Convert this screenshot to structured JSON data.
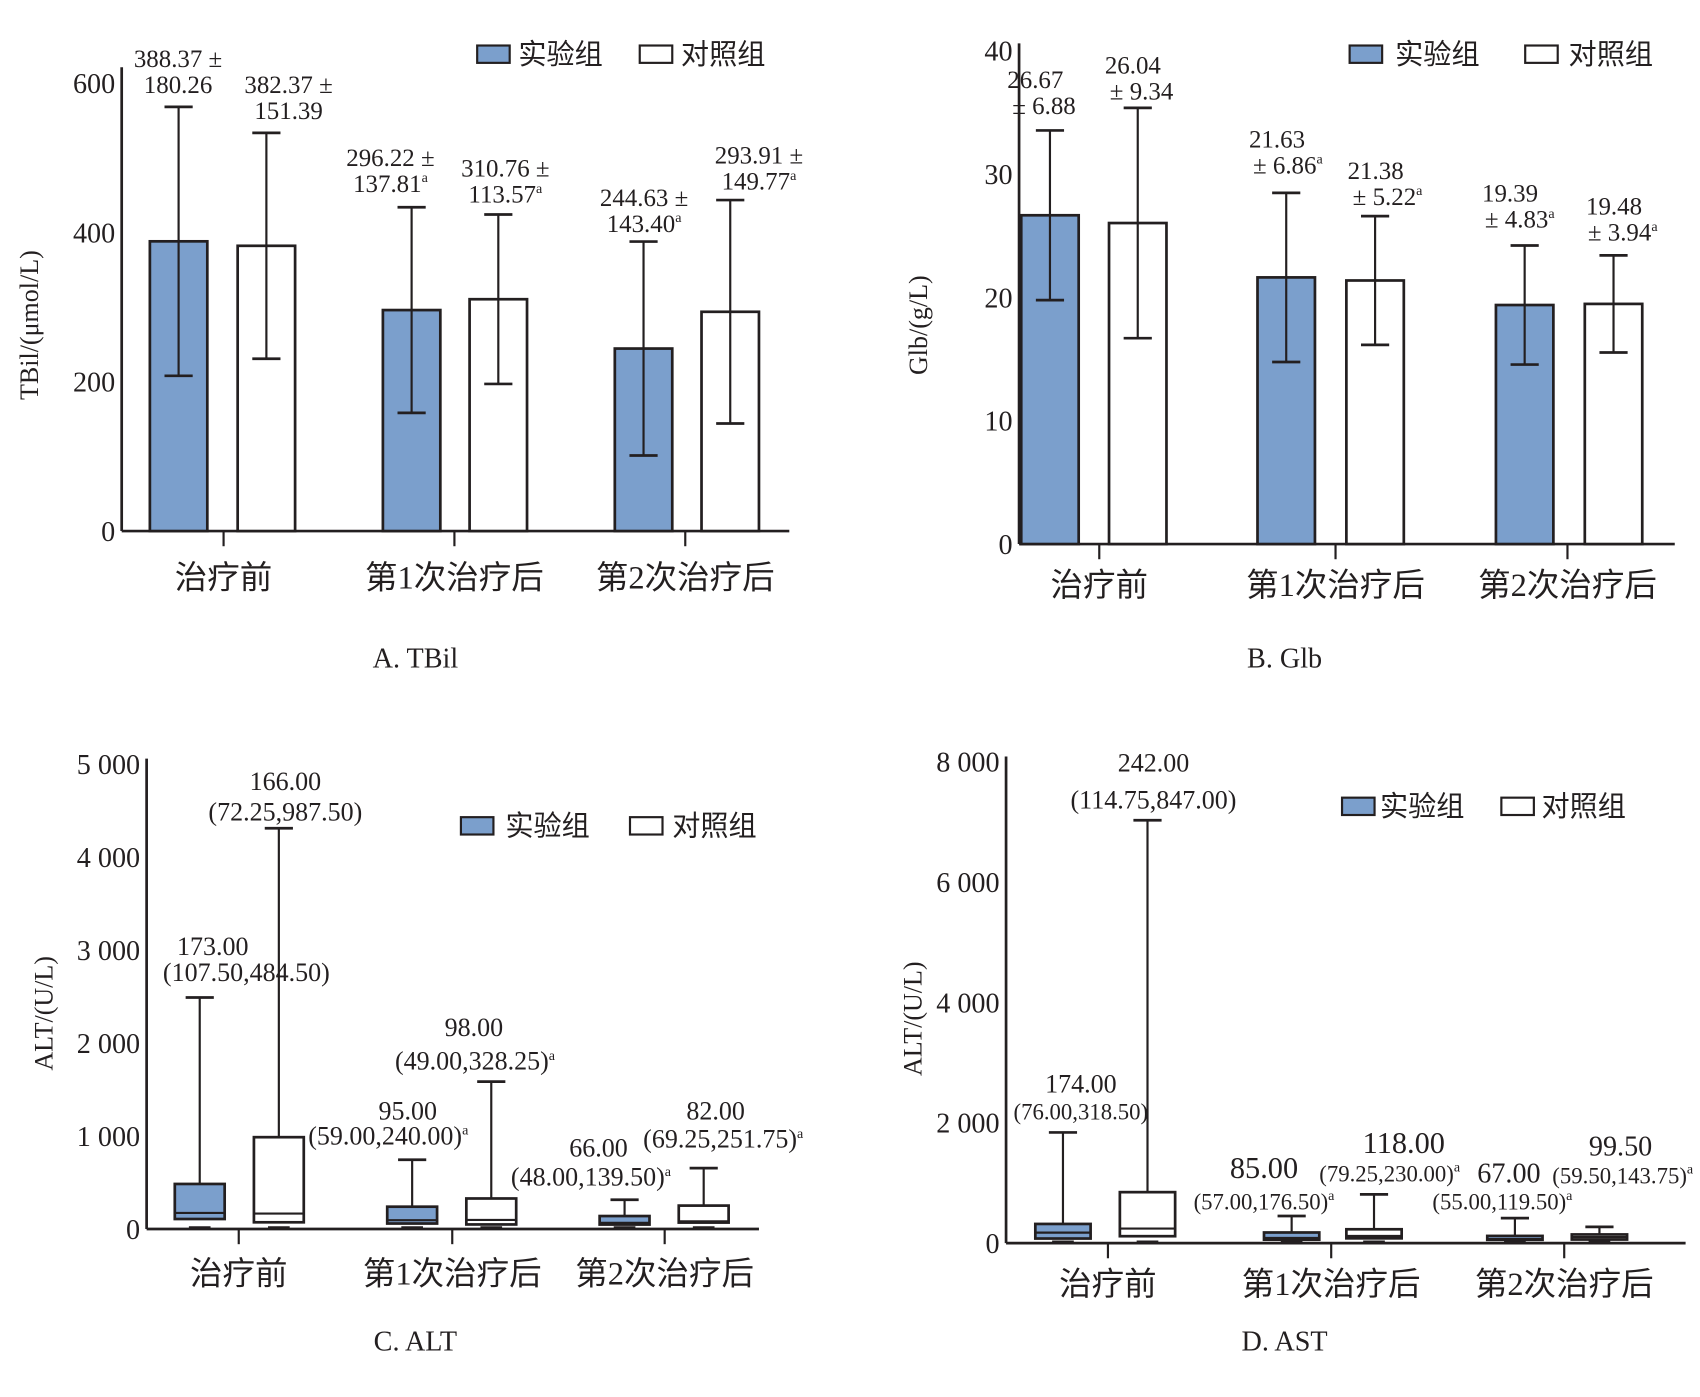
{
  "legend": {
    "experimental": "实验组",
    "control": "对照组",
    "experimental_color": "#7b9fcc",
    "control_color": "#ffffff"
  },
  "chart_data": [
    {
      "type": "bar",
      "title": "A. TBil",
      "ylabel": "TBil/(μmol/L)",
      "ylim": [
        0,
        600
      ],
      "yticks": [
        "0",
        "200",
        "400",
        "600"
      ],
      "ytick_values": [
        0,
        200,
        400,
        600
      ],
      "categories": [
        "治疗前",
        "第1次治疗后",
        "第2次治疗后"
      ],
      "series": [
        {
          "name": "实验组",
          "values": [
            388.37,
            296.22,
            244.63
          ],
          "sd": [
            180.26,
            137.81,
            143.4
          ]
        },
        {
          "name": "对照组",
          "values": [
            382.37,
            310.76,
            293.91
          ],
          "sd": [
            151.39,
            113.57,
            149.77
          ]
        }
      ],
      "labels": [
        [
          [
            "388.37 ±",
            "180.26",
            ""
          ],
          [
            "296.22 ±",
            "137.81",
            "a"
          ],
          [
            "244.63 ±",
            "143.40",
            "a"
          ]
        ],
        [
          [
            "382.37 ±",
            "151.39",
            ""
          ],
          [
            "310.76 ±",
            "113.57",
            "a"
          ],
          [
            "293.91 ±",
            "149.77",
            "a"
          ]
        ]
      ],
      "legend_position": "top-right"
    },
    {
      "type": "bar",
      "title": "B. Glb",
      "ylabel": "Glb/(g/L)",
      "ylim": [
        0,
        40
      ],
      "yticks": [
        "0",
        "10",
        "20",
        "30",
        "40"
      ],
      "ytick_values": [
        0,
        10,
        20,
        30,
        40
      ],
      "categories": [
        "治疗前",
        "第1次治疗后",
        "第2次治疗后"
      ],
      "series": [
        {
          "name": "实验组",
          "values": [
            26.67,
            21.63,
            19.39
          ],
          "sd": [
            6.88,
            6.86,
            4.83
          ]
        },
        {
          "name": "对照组",
          "values": [
            26.04,
            21.38,
            19.48
          ],
          "sd": [
            9.34,
            5.22,
            3.94
          ]
        }
      ],
      "labels": [
        [
          [
            "26.67",
            "± 6.88",
            ""
          ],
          [
            "21.63",
            "± 6.86",
            "a"
          ],
          [
            "19.39",
            "± 4.83",
            "a"
          ]
        ],
        [
          [
            "26.04",
            "± 9.34",
            ""
          ],
          [
            "21.38",
            "± 5.22",
            "a"
          ],
          [
            "19.48",
            "± 3.94",
            "a"
          ]
        ]
      ],
      "legend_position": "top-right"
    },
    {
      "type": "box",
      "title": "C. ALT",
      "ylabel": "ALT/(U/L)",
      "ylim": [
        0,
        5000
      ],
      "yticks": [
        "0",
        "1 000",
        "2 000",
        "3 000",
        "4 000",
        "5 000"
      ],
      "ytick_values": [
        0,
        1000,
        2000,
        3000,
        4000,
        5000
      ],
      "categories": [
        "治疗前",
        "第1次治疗后",
        "第2次治疗后"
      ],
      "series": [
        {
          "name": "实验组",
          "median": [
            173.0,
            95.0,
            66.0
          ],
          "q1": [
            107.5,
            59.0,
            48.0
          ],
          "q3": [
            484.5,
            240.0,
            139.5
          ],
          "whisker_high": [
            2490,
            745,
            315
          ],
          "whisker_low": [
            15,
            15,
            15
          ]
        },
        {
          "name": "对照组",
          "median": [
            166.0,
            98.0,
            82.0
          ],
          "q1": [
            72.25,
            49.0,
            69.25
          ],
          "q3": [
            987.5,
            328.25,
            251.75
          ],
          "whisker_high": [
            4310,
            1585,
            655
          ],
          "whisker_low": [
            15,
            15,
            15
          ]
        }
      ],
      "labels": [
        [
          [
            "173.00",
            "(107.50,484.50)",
            ""
          ],
          [
            "95.00",
            "(59.00,240.00)",
            "a"
          ],
          [
            "66.00",
            "(48.00,139.50)",
            "a"
          ]
        ],
        [
          [
            "166.00",
            "(72.25,987.50)",
            ""
          ],
          [
            "98.00",
            "(49.00,328.25)",
            "a"
          ],
          [
            "82.00",
            "(69.25,251.75)",
            "a"
          ]
        ]
      ],
      "legend_position": "top-right"
    },
    {
      "type": "box",
      "title": "D. AST",
      "ylabel": "ALT/(U/L)",
      "ylim": [
        0,
        8000
      ],
      "yticks": [
        "0",
        "2 000",
        "4 000",
        "6 000",
        "8 000"
      ],
      "ytick_values": [
        0,
        2000,
        4000,
        6000,
        8000
      ],
      "categories": [
        "治疗前",
        "第1次治疗后",
        "第2次治疗后"
      ],
      "series": [
        {
          "name": "实验组",
          "median": [
            174.0,
            85.0,
            67.0
          ],
          "q1": [
            76.0,
            57.0,
            55.0
          ],
          "q3": [
            318.5,
            176.5,
            119.5
          ],
          "whisker_high": [
            1840,
            450,
            415
          ],
          "whisker_low": [
            20,
            20,
            20
          ]
        },
        {
          "name": "对照组",
          "median": [
            242.0,
            118.0,
            99.5
          ],
          "q1": [
            114.75,
            79.25,
            59.5
          ],
          "q3": [
            847.0,
            230.0,
            143.75
          ],
          "whisker_high": [
            7030,
            810,
            270
          ],
          "whisker_low": [
            20,
            20,
            20
          ]
        }
      ],
      "labels": [
        [
          [
            "174.00",
            "(76.00,318.50)",
            ""
          ],
          [
            "85.00",
            "(57.00,176.50)",
            "a"
          ],
          [
            "67.00",
            "(55.00,119.50)",
            "a"
          ]
        ],
        [
          [
            "242.00",
            "(114.75,847.00)",
            ""
          ],
          [
            "118.00",
            "(79.25,230.00)",
            "a"
          ],
          [
            "99.50",
            "(59.50,143.75)",
            "a"
          ]
        ]
      ],
      "legend_position": "top-right"
    }
  ]
}
